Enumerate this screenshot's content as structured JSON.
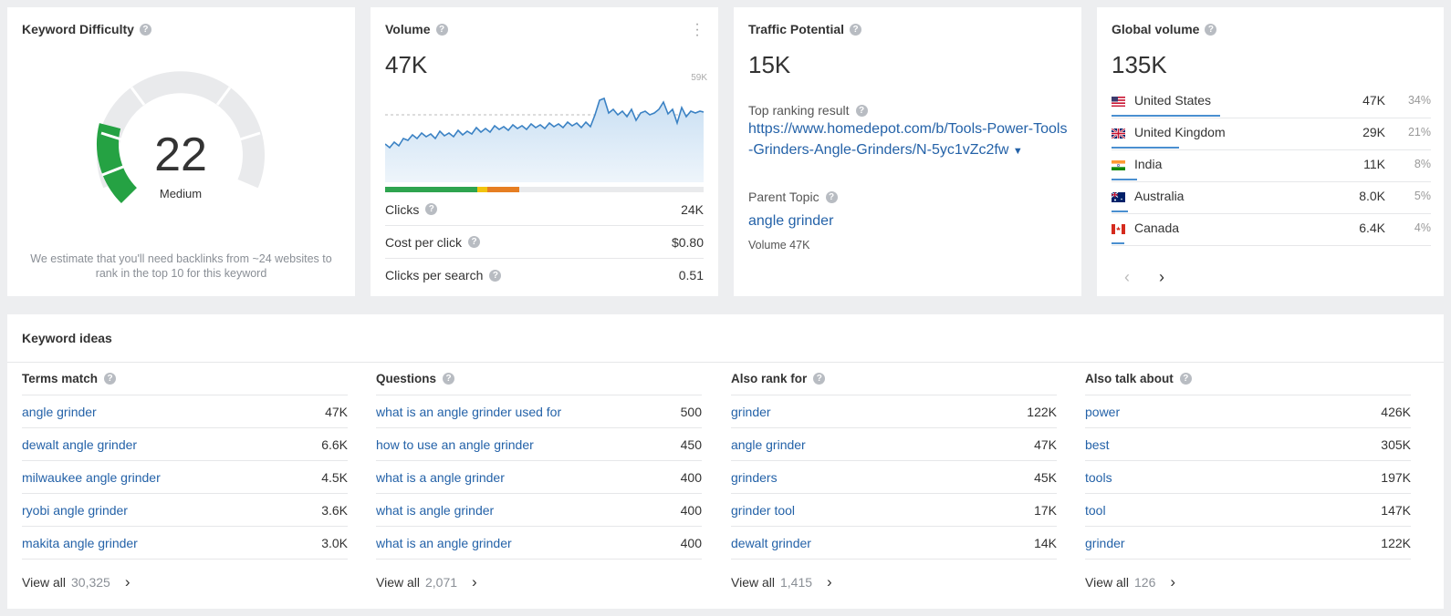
{
  "kd": {
    "title": "Keyword Difficulty",
    "value": "22",
    "label": "Medium",
    "note": "We estimate that you'll need backlinks from ~24 websites to rank in the top 10 for this keyword",
    "fill_fraction": 0.22,
    "colors": {
      "fill": "#25a243",
      "track": "#e9eaec"
    }
  },
  "volume": {
    "title": "Volume",
    "value": "47K",
    "chart_max_label": "59K",
    "metrics": [
      {
        "label": "Clicks",
        "value": "24K"
      },
      {
        "label": "Cost per click",
        "value": "$0.80"
      },
      {
        "label": "Clicks per search",
        "value": "0.51"
      }
    ],
    "click_bar": [
      {
        "color": "#2ea44f",
        "fraction": 0.29
      },
      {
        "color": "#f1c40f",
        "fraction": 0.03
      },
      {
        "color": "#e67e22",
        "fraction": 0.1
      }
    ]
  },
  "traffic": {
    "title": "Traffic Potential",
    "value": "15K",
    "top_label": "Top ranking result",
    "url": "https://www.homedepot.com/b/Tools-Power-Tools-Grinders-Angle-Grinders/N-5yc1vZc2fw",
    "parent_label": "Parent Topic",
    "parent_topic": "angle grinder",
    "parent_volume": "Volume 47K"
  },
  "global": {
    "title": "Global volume",
    "value": "135K",
    "countries": [
      {
        "name": "United States",
        "value": "47K",
        "pct": "34%",
        "share": 0.34,
        "flag": "us-flag-icon"
      },
      {
        "name": "United Kingdom",
        "value": "29K",
        "pct": "21%",
        "share": 0.21,
        "flag": "uk-flag-icon"
      },
      {
        "name": "India",
        "value": "11K",
        "pct": "8%",
        "share": 0.08,
        "flag": "india-flag-icon"
      },
      {
        "name": "Australia",
        "value": "8.0K",
        "pct": "5%",
        "share": 0.05,
        "flag": "australia-flag-icon"
      },
      {
        "name": "Canada",
        "value": "6.4K",
        "pct": "4%",
        "share": 0.04,
        "flag": "canada-flag-icon"
      }
    ]
  },
  "ideas": {
    "title": "Keyword ideas",
    "view_all_label": "View all",
    "columns": [
      {
        "title": "Terms match",
        "count": "30,325",
        "rows": [
          {
            "kw": "angle grinder",
            "vol": "47K"
          },
          {
            "kw": "dewalt angle grinder",
            "vol": "6.6K"
          },
          {
            "kw": "milwaukee angle grinder",
            "vol": "4.5K"
          },
          {
            "kw": "ryobi angle grinder",
            "vol": "3.6K"
          },
          {
            "kw": "makita angle grinder",
            "vol": "3.0K"
          }
        ]
      },
      {
        "title": "Questions",
        "count": "2,071",
        "rows": [
          {
            "kw": "what is an angle grinder used for",
            "vol": "500"
          },
          {
            "kw": "how to use an angle grinder",
            "vol": "450"
          },
          {
            "kw": "what is a angle grinder",
            "vol": "400"
          },
          {
            "kw": "what is angle grinder",
            "vol": "400"
          },
          {
            "kw": "what is an angle grinder",
            "vol": "400"
          }
        ]
      },
      {
        "title": "Also rank for",
        "count": "1,415",
        "rows": [
          {
            "kw": "grinder",
            "vol": "122K"
          },
          {
            "kw": "angle grinder",
            "vol": "47K"
          },
          {
            "kw": "grinders",
            "vol": "45K"
          },
          {
            "kw": "grinder tool",
            "vol": "17K"
          },
          {
            "kw": "dewalt grinder",
            "vol": "14K"
          }
        ]
      },
      {
        "title": "Also talk about",
        "count": "126",
        "rows": [
          {
            "kw": "power",
            "vol": "426K"
          },
          {
            "kw": "best",
            "vol": "305K"
          },
          {
            "kw": "tools",
            "vol": "197K"
          },
          {
            "kw": "tool",
            "vol": "147K"
          },
          {
            "kw": "grinder",
            "vol": "122K"
          }
        ]
      }
    ]
  }
}
